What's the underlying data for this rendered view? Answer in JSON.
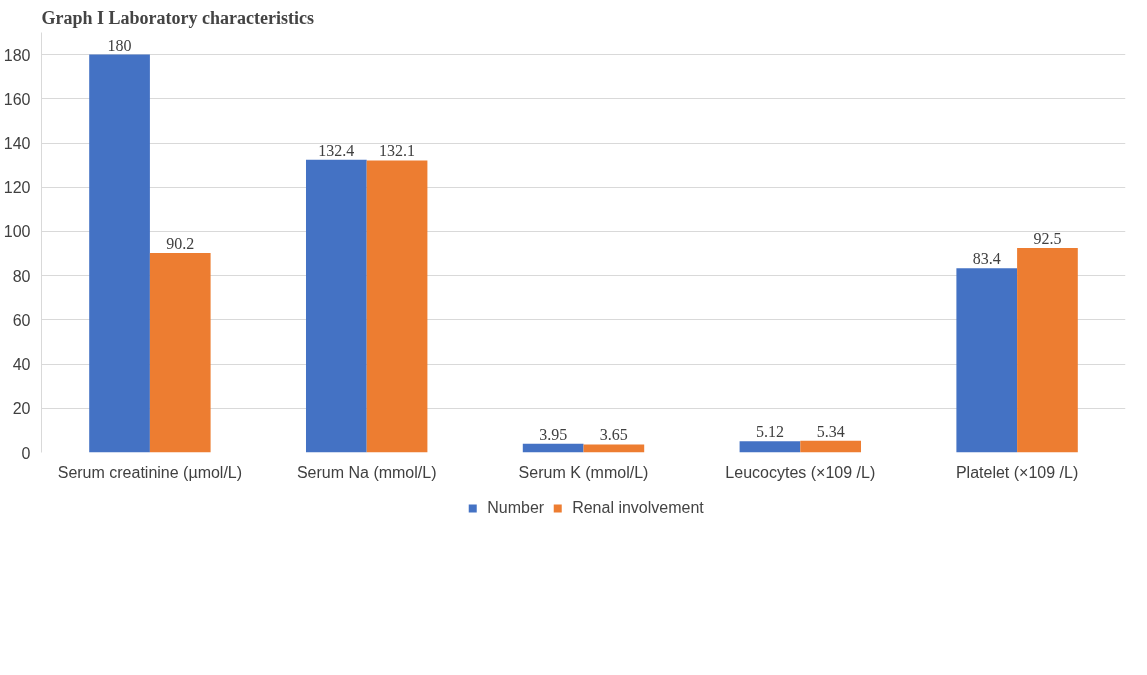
{
  "chart_data": {
    "type": "bar",
    "title": "Graph I Laboratory characteristics",
    "categories": [
      "Serum creatinine (µmol/L)",
      "Serum Na (mmol/L)",
      "Serum K (mmol/L)",
      "Leucocytes (×109 /L)",
      "Platelet (×109 /L)"
    ],
    "series": [
      {
        "name": "Number",
        "color": "#4472c4",
        "values": [
          180,
          132.4,
          3.95,
          5.12,
          83.4
        ]
      },
      {
        "name": "Renal involvement",
        "color": "#ed7d31",
        "values": [
          90.2,
          132.1,
          3.65,
          5.34,
          92.5
        ]
      }
    ],
    "ylim": [
      0,
      190
    ],
    "yticks": [
      0,
      20,
      40,
      60,
      80,
      100,
      120,
      140,
      160,
      180
    ],
    "grid": "y",
    "legend": "bottom",
    "data_labels": true
  }
}
